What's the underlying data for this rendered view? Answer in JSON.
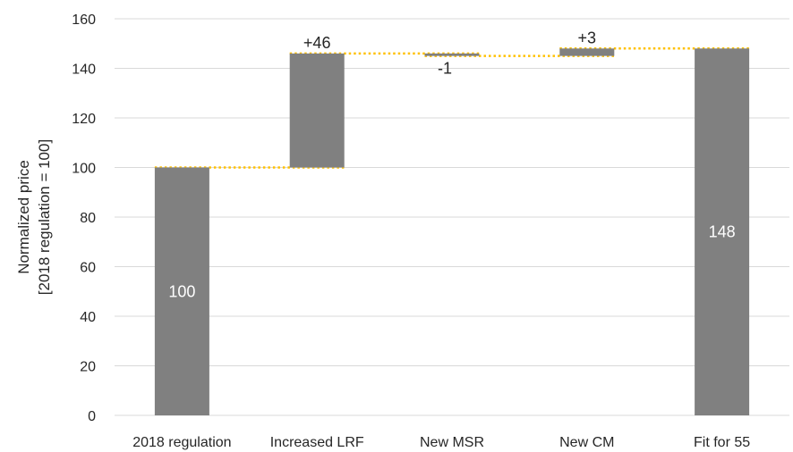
{
  "chart_data": {
    "type": "bar",
    "subtype": "waterfall",
    "categories": [
      "2018 regulation",
      "Increased LRF",
      "New MSR",
      "New CM",
      "Fit for 55"
    ],
    "steps": [
      {
        "category": "2018 regulation",
        "kind": "total",
        "start": 0,
        "end": 100,
        "label": "100"
      },
      {
        "category": "Increased LRF",
        "kind": "delta",
        "start": 100,
        "end": 146,
        "label": "+46"
      },
      {
        "category": "New MSR",
        "kind": "delta",
        "start": 146,
        "end": 145,
        "label": "-1"
      },
      {
        "category": "New CM",
        "kind": "delta",
        "start": 145,
        "end": 148,
        "label": "+3"
      },
      {
        "category": "Fit for 55",
        "kind": "total",
        "start": 0,
        "end": 148,
        "label": "148"
      }
    ],
    "ylabel_line1": "Normalized price",
    "ylabel_line2": "[2018 regulation = 100]",
    "ylim": [
      0,
      160
    ],
    "yticks": [
      0,
      20,
      40,
      60,
      80,
      100,
      120,
      140,
      160
    ],
    "grid": true,
    "legend": "none",
    "colors": {
      "bar": "#808080",
      "connector": "#FFC000",
      "grid": "#d9d9d9",
      "label_inside": "#ffffff",
      "label_outside": "#262626"
    }
  }
}
